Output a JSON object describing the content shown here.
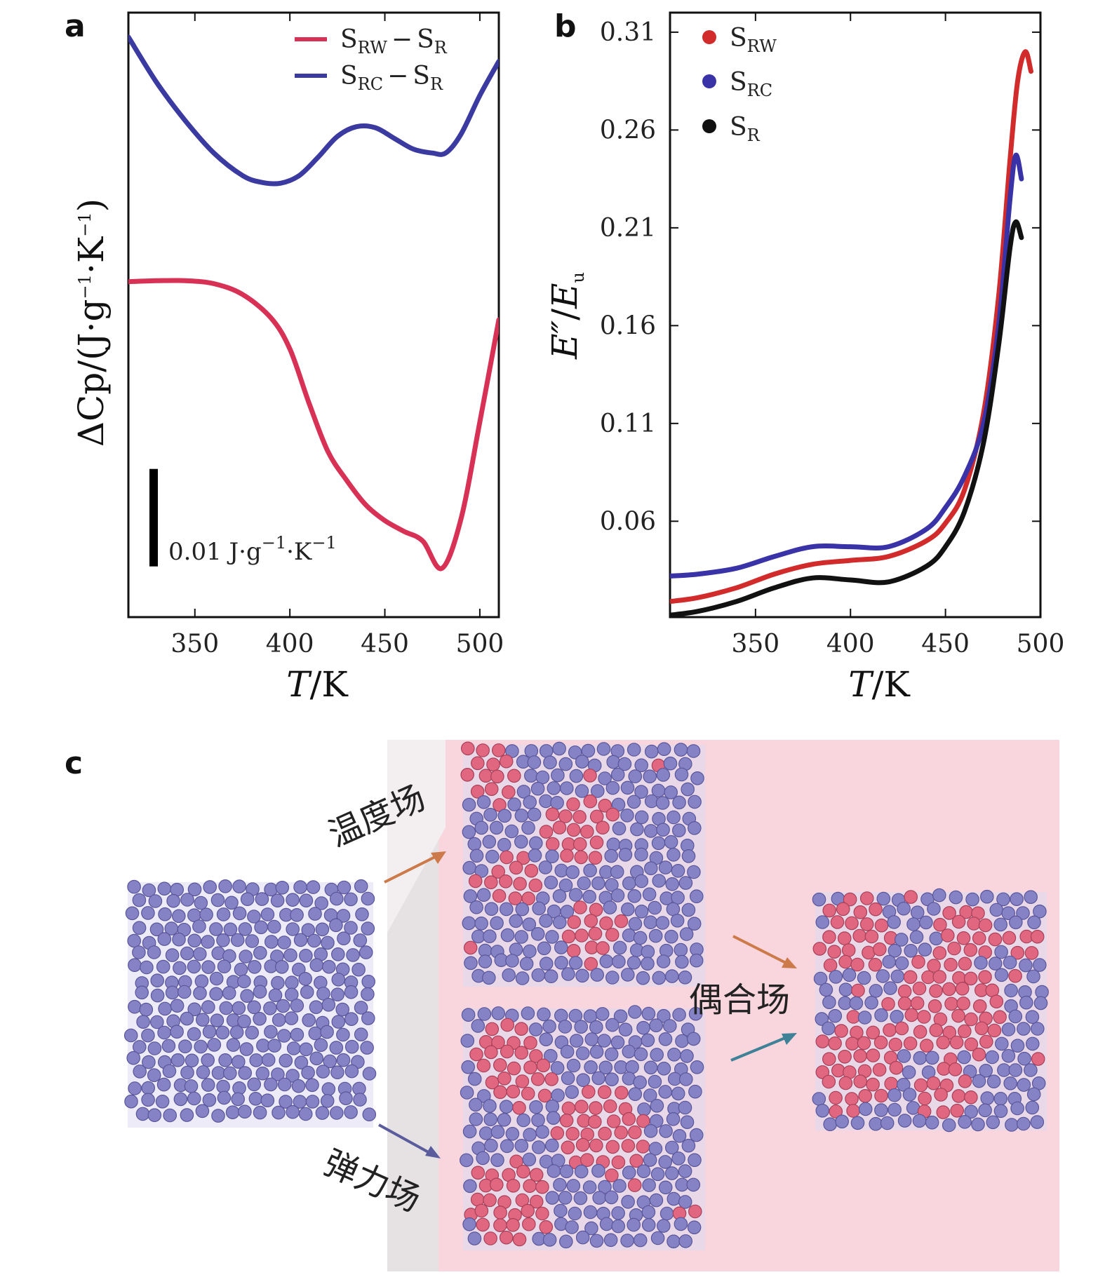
{
  "panels": {
    "a": "a",
    "b": "b",
    "c": "c"
  },
  "chart_data": [
    {
      "panel": "a",
      "type": "line",
      "xlabel": "T/K",
      "ylabel": "ΔCp/(J·g⁻¹·K⁻¹)",
      "xlim": [
        315,
        510
      ],
      "ylim": [
        -0.052,
        0.01
      ],
      "x_ticks": [
        350,
        400,
        450,
        500
      ],
      "y_ticks": [],
      "grid": false,
      "legend_position": "top-right",
      "scale_bar": {
        "label": "0.01 J·g⁻¹·K⁻¹",
        "value": 0.01,
        "from": -0.0468,
        "to": -0.0368
      },
      "series": [
        {
          "name": "S_RW − S_R",
          "name_parts": [
            "S",
            "RW",
            "−",
            "S",
            "R"
          ],
          "color": "#d83156",
          "x": [
            315,
            330,
            345,
            360,
            375,
            390,
            400,
            410,
            420,
            430,
            440,
            450,
            460,
            470,
            480,
            490,
            500,
            510
          ],
          "y": [
            -0.0176,
            -0.0175,
            -0.0175,
            -0.0178,
            -0.0189,
            -0.0213,
            -0.0245,
            -0.03,
            -0.035,
            -0.038,
            -0.0405,
            -0.0421,
            -0.0432,
            -0.0442,
            -0.047,
            -0.042,
            -0.032,
            -0.0215
          ]
        },
        {
          "name": "S_RC − S_R",
          "name_parts": [
            "S",
            "RC",
            "−",
            "S",
            "R"
          ],
          "color": "#3b3aa0",
          "x": [
            315,
            330,
            345,
            360,
            375,
            385,
            395,
            405,
            415,
            425,
            435,
            445,
            455,
            465,
            475,
            482,
            490,
            500,
            510
          ],
          "y": [
            0.0075,
            0.0028,
            -0.0011,
            -0.0044,
            -0.0067,
            -0.0074,
            -0.0075,
            -0.0067,
            -0.0048,
            -0.0027,
            -0.0017,
            -0.0018,
            -0.0029,
            -0.004,
            -0.0044,
            -0.0044,
            -0.0025,
            0.0015,
            0.005
          ]
        }
      ]
    },
    {
      "panel": "b",
      "type": "line",
      "xlabel": "T/K",
      "ylabel": "E″/Eu",
      "xlim": [
        305,
        500
      ],
      "ylim": [
        0.011,
        0.32
      ],
      "x_ticks": [
        350,
        400,
        450,
        500
      ],
      "y_ticks": [
        0.06,
        0.11,
        0.16,
        0.21,
        0.26,
        0.31
      ],
      "y_tick_labels": [
        "0.06",
        "0.11",
        "0.16",
        "0.21",
        "0.26",
        "0.31"
      ],
      "grid": false,
      "legend_position": "top-left",
      "series": [
        {
          "name": "S_RW",
          "name_parts": [
            "S",
            "RW"
          ],
          "color": "#d22b2b",
          "x": [
            305,
            320,
            340,
            360,
            380,
            400,
            420,
            440,
            450,
            460,
            470,
            478,
            484,
            488,
            492,
            495
          ],
          "y": [
            0.019,
            0.021,
            0.026,
            0.033,
            0.038,
            0.04,
            0.042,
            0.05,
            0.059,
            0.076,
            0.115,
            0.175,
            0.245,
            0.285,
            0.3,
            0.29
          ]
        },
        {
          "name": "S_RC",
          "name_parts": [
            "S",
            "RC"
          ],
          "color": "#3a33a8",
          "x": [
            305,
            320,
            340,
            360,
            380,
            400,
            420,
            440,
            450,
            460,
            470,
            478,
            484,
            487,
            490
          ],
          "y": [
            0.032,
            0.033,
            0.036,
            0.042,
            0.047,
            0.047,
            0.047,
            0.056,
            0.067,
            0.083,
            0.11,
            0.16,
            0.225,
            0.247,
            0.235
          ]
        },
        {
          "name": "S_R",
          "name_parts": [
            "S",
            "R"
          ],
          "color": "#111111",
          "x": [
            305,
            320,
            340,
            360,
            380,
            400,
            420,
            440,
            450,
            460,
            470,
            478,
            484,
            487,
            490
          ],
          "y": [
            0.012,
            0.014,
            0.019,
            0.026,
            0.031,
            0.03,
            0.029,
            0.037,
            0.047,
            0.065,
            0.1,
            0.15,
            0.2,
            0.213,
            0.205
          ]
        }
      ]
    }
  ],
  "panel_c": {
    "labels": {
      "temperature_field": "温度场",
      "elastic_field": "弹力场",
      "coupled_field": "偶合场"
    },
    "colors": {
      "background": "#f9d6de",
      "side_band": "#e6e2e4",
      "blue_particle": "#8682c6",
      "red_particle": "#e0677f",
      "arrow_orange": "#cc7a4a",
      "arrow_blue_upper": "#3f8196",
      "arrow_blue_lower": "#5b5c9c"
    }
  }
}
